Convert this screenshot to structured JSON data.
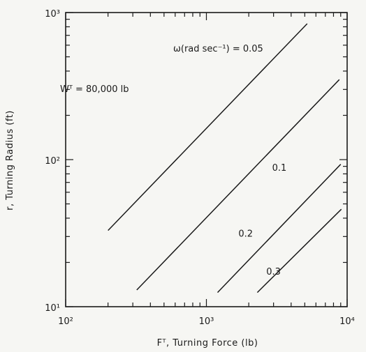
{
  "chart_data": {
    "type": "line",
    "title": "",
    "xlabel": "Fᵀ, Turning Force (lb)",
    "ylabel": "r, Turning Radius (ft)",
    "xscale": "log",
    "yscale": "log",
    "xlim": [
      100,
      10000
    ],
    "ylim": [
      10,
      1000
    ],
    "x_ticks": [
      {
        "value": 100,
        "label": "10²"
      },
      {
        "value": 1000,
        "label": "10³"
      },
      {
        "value": 10000,
        "label": "10⁴"
      }
    ],
    "y_ticks": [
      {
        "value": 10,
        "label": "10¹"
      },
      {
        "value": 100,
        "label": "10²"
      },
      {
        "value": 1000,
        "label": "10³"
      }
    ],
    "grid": false,
    "annotation": "Wᵀ = 80,000 lb",
    "series_caption": "ω(rad sec⁻¹) = 0.05",
    "series": [
      {
        "name": "0.05",
        "x": [
          200,
          5200
        ],
        "y": [
          33,
          840
        ]
      },
      {
        "name": "0.1",
        "x": [
          320,
          8800
        ],
        "y": [
          13,
          350
        ]
      },
      {
        "name": "0.2",
        "x": [
          1200,
          9000
        ],
        "y": [
          12.5,
          93
        ]
      },
      {
        "name": "0.3",
        "x": [
          2300,
          9100
        ],
        "y": [
          12.5,
          46
        ]
      }
    ],
    "series_labels": [
      "0.1",
      "0.2",
      "0.3"
    ]
  }
}
